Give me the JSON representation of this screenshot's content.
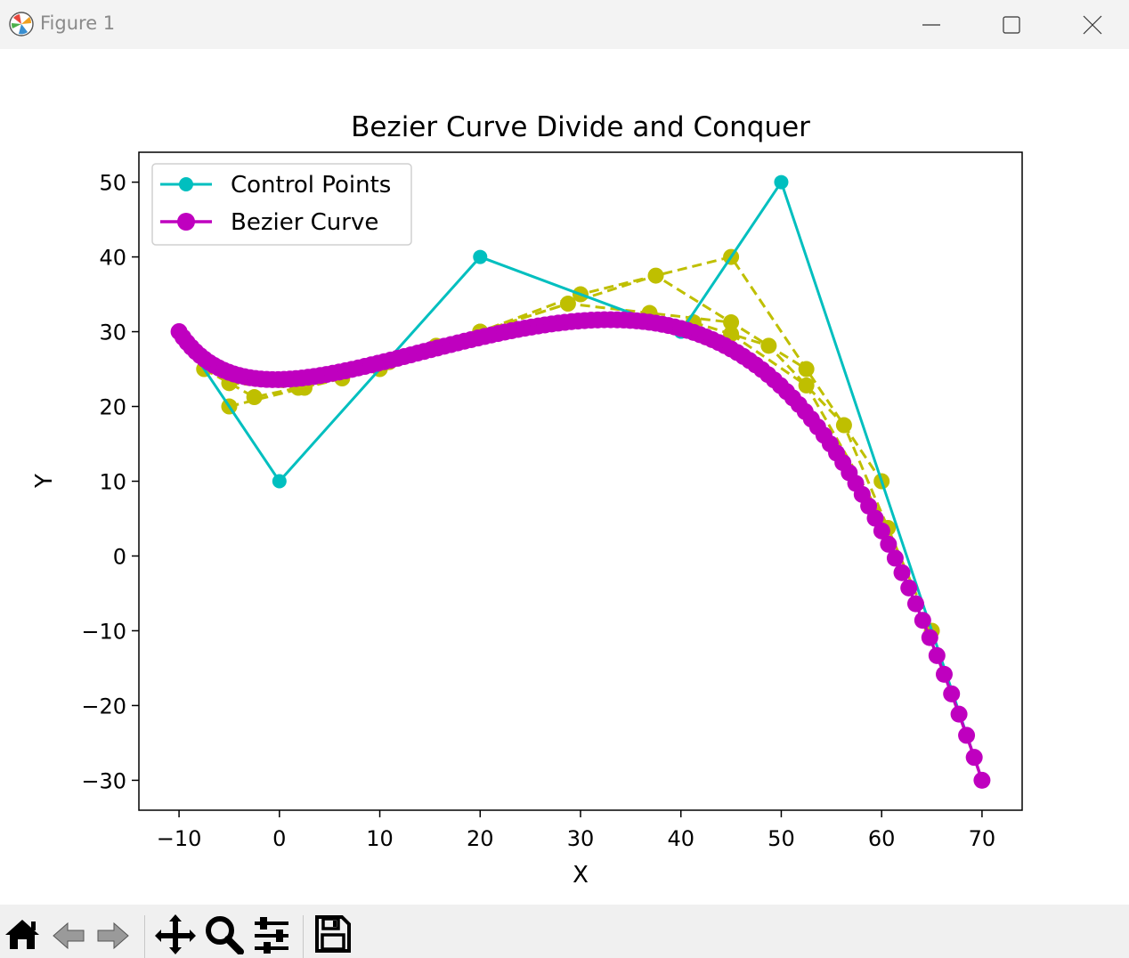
{
  "window": {
    "title": "Figure 1"
  },
  "toolbar": {
    "tools": [
      "home-icon",
      "back-icon",
      "forward-icon",
      "pan-icon",
      "zoom-icon",
      "configure-subplots-icon",
      "save-icon"
    ]
  },
  "colors": {
    "control": "#00bfbf",
    "curve": "#bf00bf",
    "intermediate": "#bfbf00"
  },
  "chart_data": {
    "type": "line",
    "title": "Bezier Curve Divide and Conquer",
    "xlabel": "X",
    "ylabel": "Y",
    "xlim": [
      -14,
      74
    ],
    "ylim": [
      -34,
      54
    ],
    "xticks": [
      -10,
      0,
      10,
      20,
      30,
      40,
      50,
      60,
      70
    ],
    "xtick_labels": [
      "−10",
      "0",
      "10",
      "20",
      "30",
      "40",
      "50",
      "60",
      "70"
    ],
    "yticks": [
      -30,
      -20,
      -10,
      0,
      10,
      20,
      30,
      40,
      50
    ],
    "ytick_labels": [
      "−30",
      "−20",
      "−10",
      "0",
      "10",
      "20",
      "30",
      "40",
      "50"
    ],
    "grid": false,
    "legend_position": "upper-left",
    "series": [
      {
        "name": "Control Points",
        "style": "solid-with-markers",
        "color": "#00bfbf",
        "x": [
          -10,
          0,
          20,
          40,
          50,
          70
        ],
        "y": [
          30,
          10,
          40,
          30,
          50,
          -30
        ]
      },
      {
        "name": "Bezier Curve",
        "style": "solid-with-markers",
        "color": "#bf00bf",
        "control_points": [
          [
            -10,
            30
          ],
          [
            0,
            10
          ],
          [
            20,
            40
          ],
          [
            40,
            30
          ],
          [
            50,
            50
          ],
          [
            70,
            -30
          ]
        ],
        "sample_count": 129
      }
    ],
    "intermediate_lines": {
      "style": "dashed-with-markers",
      "color": "#bfbf00",
      "polylines": [
        {
          "x": [
            -5,
            10,
            30,
            45,
            60
          ],
          "y": [
            20,
            25,
            35,
            40,
            10
          ]
        },
        {
          "x": [
            2.5,
            20,
            37.5,
            52.5
          ],
          "y": [
            22.5,
            30,
            37.5,
            25
          ]
        },
        {
          "x": [
            11.25,
            28.75,
            45
          ],
          "y": [
            26.25,
            33.75,
            31.25
          ]
        },
        {
          "x": [
            20,
            36.88
          ],
          "y": [
            30,
            32.5
          ]
        },
        {
          "x": [
            -7.5,
            -2.5,
            6.25,
            15.62
          ],
          "y": [
            25,
            21.25,
            23.75,
            28.12
          ]
        },
        {
          "x": [
            -5,
            1.88,
            10.94
          ],
          "y": [
            23.12,
            22.5,
            25.94
          ]
        },
        {
          "x": [
            41.25,
            48.75,
            56.25,
            65
          ],
          "y": [
            31.25,
            28.12,
            17.5,
            -10
          ]
        },
        {
          "x": [
            45,
            52.5,
            60.62
          ],
          "y": [
            29.69,
            22.81,
            3.75
          ]
        }
      ]
    }
  }
}
